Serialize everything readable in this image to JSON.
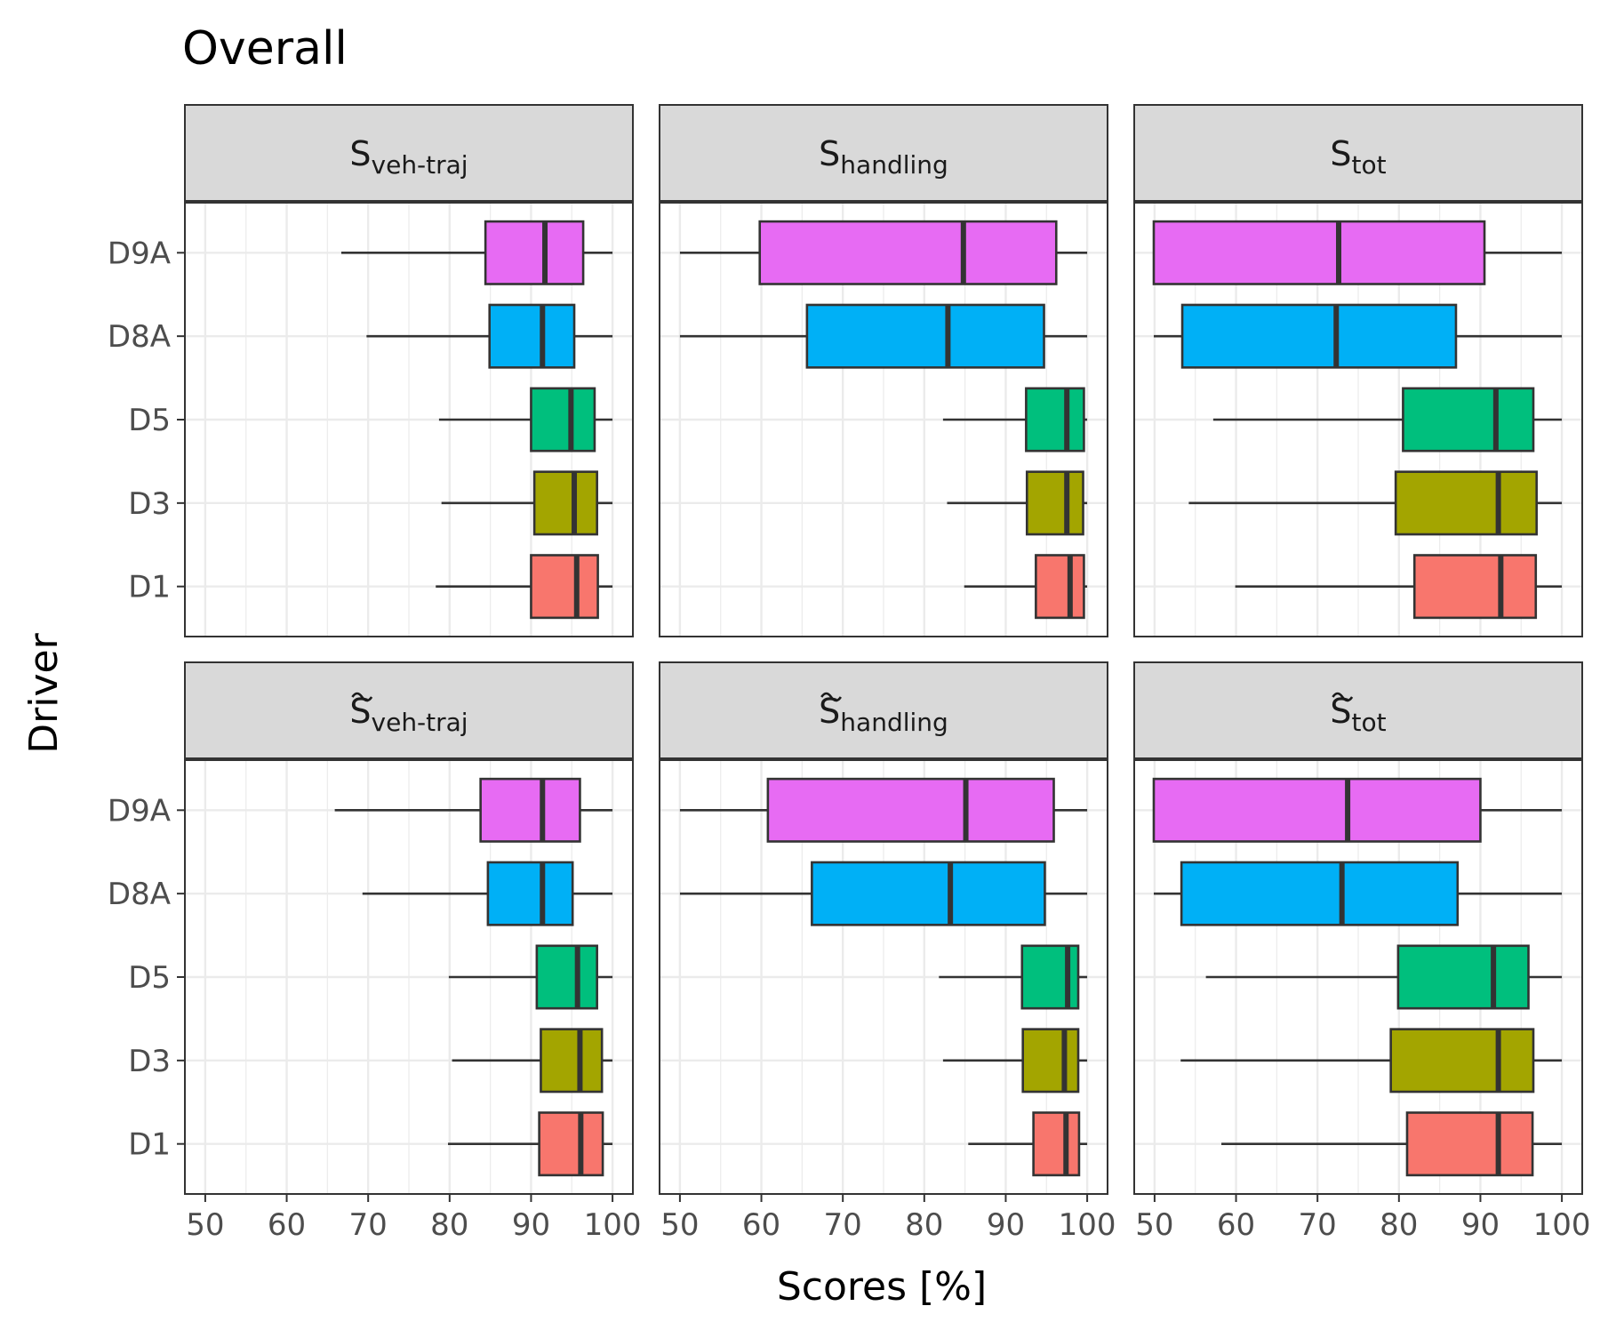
{
  "chart_data": {
    "type": "boxplot",
    "title": "Overall",
    "xlabel": "Scores [%]",
    "ylabel": "Driver",
    "xlim": [
      47.5,
      102.5
    ],
    "xticks": [
      "50",
      "60",
      "70",
      "80",
      "90",
      "100"
    ],
    "categories": [
      "D1",
      "D3",
      "D5",
      "D8A",
      "D9A"
    ],
    "colors": {
      "D1": "#F8766D",
      "D3": "#A3A500",
      "D5": "#00BF7D",
      "D8A": "#00B0F6",
      "D9A": "#E76BF3"
    },
    "facets": [
      {
        "strip_main": "S",
        "strip_sub": "veh-traj",
        "tilde": false,
        "boxes": [
          {
            "driver": "D1",
            "min": 78.3,
            "q1": 90.0,
            "median": 95.6,
            "q3": 98.2,
            "max": 100.0
          },
          {
            "driver": "D3",
            "min": 79.0,
            "q1": 90.4,
            "median": 95.3,
            "q3": 98.1,
            "max": 100.0
          },
          {
            "driver": "D5",
            "min": 78.7,
            "q1": 90.0,
            "median": 94.9,
            "q3": 97.8,
            "max": 100.0
          },
          {
            "driver": "D8A",
            "min": 69.8,
            "q1": 84.9,
            "median": 91.4,
            "q3": 95.3,
            "max": 100.0
          },
          {
            "driver": "D9A",
            "min": 66.7,
            "q1": 84.4,
            "median": 91.7,
            "q3": 96.4,
            "max": 100.0
          }
        ]
      },
      {
        "strip_main": "S",
        "strip_sub": "handling",
        "tilde": false,
        "boxes": [
          {
            "driver": "D1",
            "min": 84.9,
            "q1": 93.7,
            "median": 97.9,
            "q3": 99.6,
            "max": 100.0
          },
          {
            "driver": "D3",
            "min": 82.8,
            "q1": 92.6,
            "median": 97.5,
            "q3": 99.5,
            "max": 100.0
          },
          {
            "driver": "D5",
            "min": 82.3,
            "q1": 92.5,
            "median": 97.5,
            "q3": 99.6,
            "max": 100.0
          },
          {
            "driver": "D8A",
            "min": 50.0,
            "q1": 65.6,
            "median": 82.9,
            "q3": 94.7,
            "max": 100.0
          },
          {
            "driver": "D9A",
            "min": 50.0,
            "q1": 59.8,
            "median": 84.8,
            "q3": 96.2,
            "max": 100.0
          }
        ]
      },
      {
        "strip_main": "S",
        "strip_sub": "tot",
        "tilde": false,
        "boxes": [
          {
            "driver": "D1",
            "min": 59.9,
            "q1": 81.9,
            "median": 92.5,
            "q3": 96.8,
            "max": 100.0
          },
          {
            "driver": "D3",
            "min": 54.2,
            "q1": 79.6,
            "median": 92.2,
            "q3": 96.9,
            "max": 100.0
          },
          {
            "driver": "D5",
            "min": 57.2,
            "q1": 80.5,
            "median": 91.9,
            "q3": 96.5,
            "max": 100.0
          },
          {
            "driver": "D8A",
            "min": 49.9,
            "q1": 53.4,
            "median": 72.3,
            "q3": 87.0,
            "max": 100.0
          },
          {
            "driver": "D9A",
            "min": 49.9,
            "q1": 49.9,
            "median": 72.6,
            "q3": 90.5,
            "max": 100.0
          }
        ]
      },
      {
        "strip_main": "S",
        "strip_sub": "veh-traj",
        "tilde": true,
        "boxes": [
          {
            "driver": "D1",
            "min": 79.8,
            "q1": 91.0,
            "median": 96.1,
            "q3": 98.8,
            "max": 100.0
          },
          {
            "driver": "D3",
            "min": 80.3,
            "q1": 91.2,
            "median": 96.0,
            "q3": 98.7,
            "max": 100.0
          },
          {
            "driver": "D5",
            "min": 79.9,
            "q1": 90.7,
            "median": 95.7,
            "q3": 98.1,
            "max": 100.0
          },
          {
            "driver": "D8A",
            "min": 69.3,
            "q1": 84.7,
            "median": 91.4,
            "q3": 95.1,
            "max": 100.0
          },
          {
            "driver": "D9A",
            "min": 65.9,
            "q1": 83.8,
            "median": 91.4,
            "q3": 96.0,
            "max": 100.0
          }
        ]
      },
      {
        "strip_main": "S",
        "strip_sub": "handling",
        "tilde": true,
        "boxes": [
          {
            "driver": "D1",
            "min": 85.4,
            "q1": 93.4,
            "median": 97.4,
            "q3": 99.0,
            "max": 100.0
          },
          {
            "driver": "D3",
            "min": 82.3,
            "q1": 92.1,
            "median": 97.2,
            "q3": 98.9,
            "max": 100.0
          },
          {
            "driver": "D5",
            "min": 81.8,
            "q1": 92.0,
            "median": 97.6,
            "q3": 98.9,
            "max": 100.0
          },
          {
            "driver": "D8A",
            "min": 50.0,
            "q1": 66.2,
            "median": 83.2,
            "q3": 94.8,
            "max": 100.0
          },
          {
            "driver": "D9A",
            "min": 50.0,
            "q1": 60.8,
            "median": 85.1,
            "q3": 95.9,
            "max": 100.0
          }
        ]
      },
      {
        "strip_main": "S",
        "strip_sub": "tot",
        "tilde": true,
        "boxes": [
          {
            "driver": "D1",
            "min": 58.2,
            "q1": 81.0,
            "median": 92.2,
            "q3": 96.4,
            "max": 100.0
          },
          {
            "driver": "D3",
            "min": 53.2,
            "q1": 79.0,
            "median": 92.2,
            "q3": 96.5,
            "max": 100.0
          },
          {
            "driver": "D5",
            "min": 56.3,
            "q1": 79.9,
            "median": 91.6,
            "q3": 95.9,
            "max": 100.0
          },
          {
            "driver": "D8A",
            "min": 49.9,
            "q1": 53.3,
            "median": 73.0,
            "q3": 87.2,
            "max": 100.0
          },
          {
            "driver": "D9A",
            "min": 49.9,
            "q1": 49.9,
            "median": 73.7,
            "q3": 90.0,
            "max": 100.0
          }
        ]
      }
    ]
  }
}
